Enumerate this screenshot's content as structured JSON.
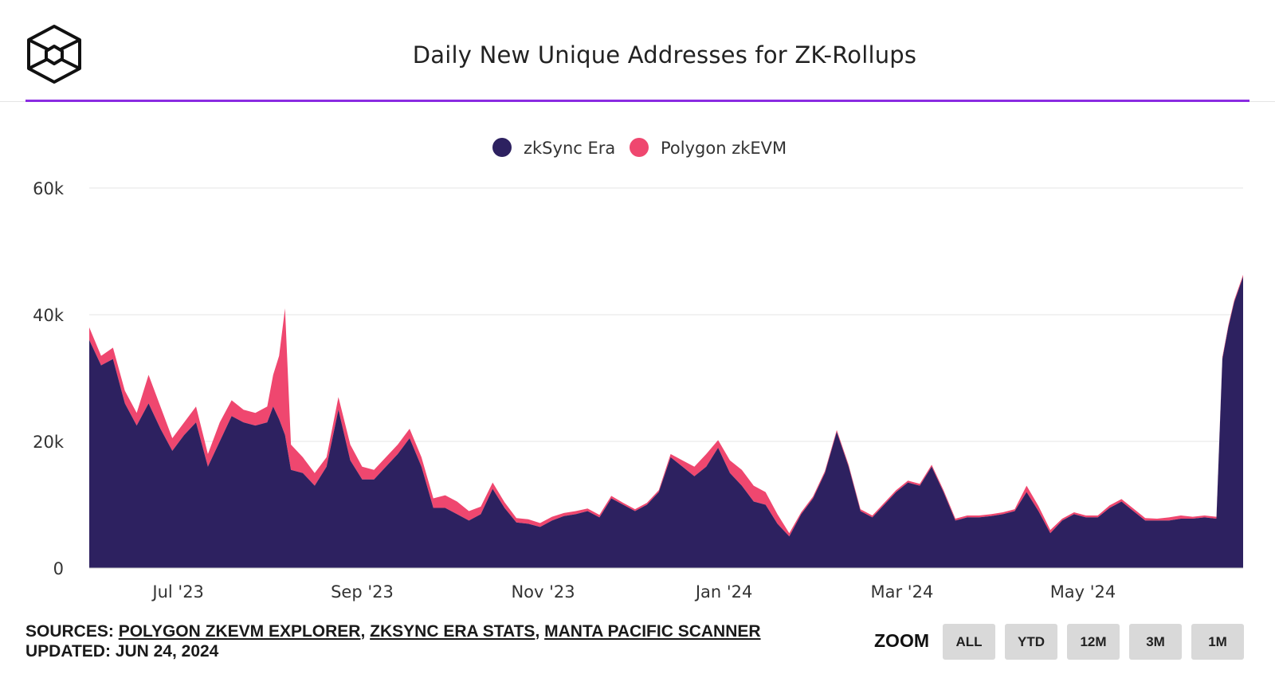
{
  "title": "Daily New Unique Addresses for ZK-Rollups",
  "sources_label": "SOURCES:",
  "sources": [
    "POLYGON ZKEVM EXPLORER",
    "ZKSYNC ERA STATS",
    "MANTA PACIFIC SCANNER"
  ],
  "updated": "UPDATED: JUN 24, 2024",
  "zoom": {
    "label": "ZOOM",
    "buttons": [
      "ALL",
      "YTD",
      "12M",
      "3M",
      "1M"
    ]
  },
  "colors": {
    "zksync": "#2d2160",
    "polygon": "#ef476f",
    "accent": "#8a2be2"
  },
  "chart_data": {
    "type": "area",
    "stacked": true,
    "xlabel": "",
    "ylabel": "",
    "ylim": [
      0,
      60000
    ],
    "y_ticks": [
      0,
      20000,
      40000,
      60000
    ],
    "y_tick_labels": [
      "0",
      "20k",
      "40k",
      "60k"
    ],
    "x_ticks": [
      "2023-07-01",
      "2023-09-01",
      "2023-11-01",
      "2024-01-01",
      "2024-03-01",
      "2024-05-01"
    ],
    "x_tick_labels": [
      "Jul '23",
      "Sep '23",
      "Nov '23",
      "Jan '24",
      "Mar '24",
      "May '24"
    ],
    "x_range": [
      "2023-06-01",
      "2024-06-24"
    ],
    "legend_position": "top-center",
    "grid": true,
    "x": [
      "2023-06-01",
      "2023-06-05",
      "2023-06-09",
      "2023-06-13",
      "2023-06-17",
      "2023-06-21",
      "2023-06-25",
      "2023-06-29",
      "2023-07-03",
      "2023-07-07",
      "2023-07-11",
      "2023-07-15",
      "2023-07-19",
      "2023-07-23",
      "2023-07-27",
      "2023-07-31",
      "2023-08-02",
      "2023-08-04",
      "2023-08-06",
      "2023-08-08",
      "2023-08-12",
      "2023-08-16",
      "2023-08-20",
      "2023-08-24",
      "2023-08-28",
      "2023-09-01",
      "2023-09-05",
      "2023-09-09",
      "2023-09-13",
      "2023-09-17",
      "2023-09-21",
      "2023-09-25",
      "2023-09-29",
      "2023-10-03",
      "2023-10-07",
      "2023-10-11",
      "2023-10-15",
      "2023-10-19",
      "2023-10-23",
      "2023-10-27",
      "2023-10-31",
      "2023-11-04",
      "2023-11-08",
      "2023-11-12",
      "2023-11-16",
      "2023-11-20",
      "2023-11-24",
      "2023-11-28",
      "2023-12-02",
      "2023-12-06",
      "2023-12-10",
      "2023-12-14",
      "2023-12-18",
      "2023-12-22",
      "2023-12-26",
      "2023-12-30",
      "2024-01-03",
      "2024-01-07",
      "2024-01-11",
      "2024-01-15",
      "2024-01-19",
      "2024-01-23",
      "2024-01-27",
      "2024-01-31",
      "2024-02-04",
      "2024-02-08",
      "2024-02-12",
      "2024-02-16",
      "2024-02-20",
      "2024-02-24",
      "2024-02-28",
      "2024-03-03",
      "2024-03-07",
      "2024-03-11",
      "2024-03-15",
      "2024-03-19",
      "2024-03-23",
      "2024-03-27",
      "2024-03-31",
      "2024-04-04",
      "2024-04-08",
      "2024-04-12",
      "2024-04-16",
      "2024-04-20",
      "2024-04-24",
      "2024-04-28",
      "2024-05-02",
      "2024-05-06",
      "2024-05-10",
      "2024-05-14",
      "2024-05-18",
      "2024-05-22",
      "2024-05-26",
      "2024-05-30",
      "2024-06-03",
      "2024-06-07",
      "2024-06-11",
      "2024-06-15",
      "2024-06-17",
      "2024-06-19",
      "2024-06-21",
      "2024-06-24"
    ],
    "series": [
      {
        "name": "zkSync Era",
        "color": "#2d2160",
        "values": [
          36000,
          32000,
          33000,
          26000,
          22500,
          26000,
          22000,
          18500,
          21000,
          23000,
          16000,
          20000,
          24000,
          23000,
          22500,
          23000,
          25500,
          23500,
          21000,
          15500,
          15000,
          13000,
          16000,
          25000,
          17000,
          14000,
          14000,
          16000,
          18000,
          20500,
          16000,
          9500,
          9500,
          8500,
          7500,
          8500,
          12500,
          9500,
          7200,
          7000,
          6500,
          7500,
          8200,
          8500,
          9000,
          8000,
          11000,
          10000,
          9000,
          10000,
          12000,
          17500,
          16000,
          14500,
          16000,
          19000,
          15000,
          13000,
          10500,
          10000,
          7000,
          5000,
          8500,
          11000,
          15000,
          21500,
          16000,
          9000,
          8000,
          10000,
          12000,
          13500,
          13000,
          16000,
          12000,
          7500,
          8000,
          8000,
          8200,
          8500,
          9000,
          12000,
          9000,
          5500,
          7500,
          8500,
          8000,
          8000,
          9500,
          10500,
          9000,
          7500,
          7500,
          7500,
          7800,
          7800,
          8000,
          7800,
          33000,
          38000,
          42000,
          46000
        ]
      },
      {
        "name": "Polygon zkEVM",
        "color": "#ef476f",
        "values": [
          2000,
          1500,
          1800,
          2000,
          2000,
          4500,
          3500,
          2000,
          2000,
          2500,
          2000,
          3000,
          2500,
          2000,
          2000,
          2500,
          5000,
          10000,
          20000,
          4000,
          2500,
          2000,
          1500,
          2000,
          2500,
          2000,
          1500,
          1500,
          1500,
          1500,
          1500,
          1500,
          2000,
          2000,
          1500,
          1200,
          1000,
          900,
          700,
          700,
          600,
          600,
          500,
          500,
          400,
          400,
          400,
          300,
          300,
          300,
          300,
          500,
          1000,
          1500,
          2000,
          1200,
          2000,
          2500,
          2500,
          2000,
          1500,
          500,
          300,
          300,
          300,
          300,
          300,
          300,
          300,
          300,
          300,
          300,
          300,
          300,
          300,
          300,
          300,
          300,
          300,
          300,
          300,
          1000,
          800,
          500,
          300,
          300,
          300,
          300,
          400,
          400,
          400,
          400,
          300,
          500,
          500,
          300,
          300,
          300,
          300,
          300,
          300,
          300
        ]
      }
    ]
  }
}
